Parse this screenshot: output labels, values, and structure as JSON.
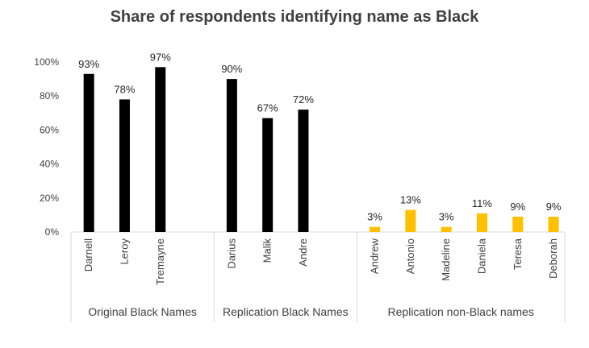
{
  "chart_data": {
    "type": "bar",
    "title": "Share of respondents identifying name as Black",
    "xlabel": "",
    "ylabel": "",
    "ylim": [
      0,
      100
    ],
    "y_ticks": [
      "0%",
      "20%",
      "40%",
      "60%",
      "80%",
      "100%"
    ],
    "y_tick_values": [
      0,
      20,
      40,
      60,
      80,
      100
    ],
    "grid": false,
    "legend": "none",
    "groups": [
      {
        "name": "Original Black Names",
        "color": "#000000",
        "categories": [
          "Darnell",
          "Leroy",
          "Tremayne"
        ],
        "values": [
          93,
          78,
          97
        ],
        "labels": [
          "93%",
          "78%",
          "97%"
        ]
      },
      {
        "name": "Replication Black Names",
        "color": "#000000",
        "categories": [
          "Darius",
          "Malik",
          "Andre"
        ],
        "values": [
          90,
          67,
          72
        ],
        "labels": [
          "90%",
          "67%",
          "72%"
        ]
      },
      {
        "name": "Replication non-Black names",
        "color": "#FFC000",
        "categories": [
          "Andrew",
          "Antonio",
          "Madeline",
          "Daniela",
          "Teresa",
          "Deborah"
        ],
        "values": [
          3,
          13,
          3,
          11,
          9,
          9
        ],
        "labels": [
          "3%",
          "13%",
          "3%",
          "11%",
          "9%",
          "9%"
        ]
      }
    ]
  }
}
